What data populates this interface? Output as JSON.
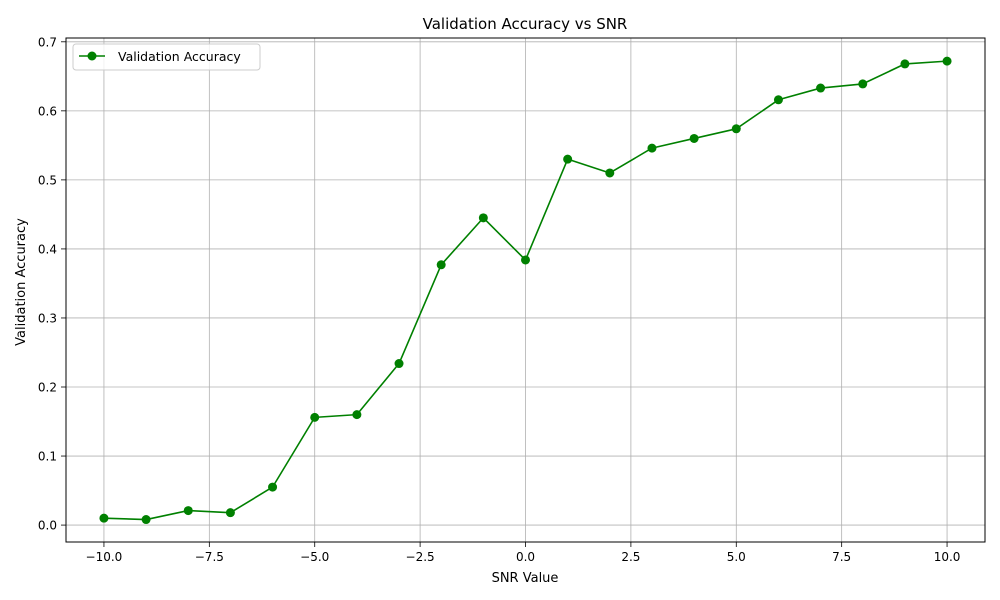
{
  "chart_data": {
    "type": "line",
    "title": "Validation Accuracy vs SNR",
    "xlabel": "SNR Value",
    "ylabel": "Validation Accuracy",
    "xlim": [
      -10.9,
      10.9
    ],
    "ylim": [
      -0.0245,
      0.7055
    ],
    "grid": true,
    "legend_position": "upper-left",
    "x_ticks": [
      -10.0,
      -7.5,
      -5.0,
      -2.5,
      0.0,
      2.5,
      5.0,
      7.5,
      10.0
    ],
    "x_tick_labels": [
      "−10.0",
      "−7.5",
      "−5.0",
      "−2.5",
      "0.0",
      "2.5",
      "5.0",
      "7.5",
      "10.0"
    ],
    "y_ticks": [
      0.0,
      0.1,
      0.2,
      0.3,
      0.4,
      0.5,
      0.6,
      0.7
    ],
    "y_tick_labels": [
      "0.0",
      "0.1",
      "0.2",
      "0.3",
      "0.4",
      "0.5",
      "0.6",
      "0.7"
    ],
    "series": [
      {
        "name": "Validation Accuracy",
        "color": "#008000",
        "marker": "circle",
        "x": [
          -10,
          -9,
          -8,
          -7,
          -6,
          -5,
          -4,
          -3,
          -2,
          -1,
          0,
          1,
          2,
          3,
          4,
          5,
          6,
          7,
          8,
          9,
          10
        ],
        "y": [
          0.01,
          0.008,
          0.021,
          0.018,
          0.055,
          0.156,
          0.16,
          0.234,
          0.377,
          0.445,
          0.384,
          0.53,
          0.51,
          0.546,
          0.56,
          0.574,
          0.616,
          0.633,
          0.639,
          0.668,
          0.672
        ]
      }
    ]
  }
}
